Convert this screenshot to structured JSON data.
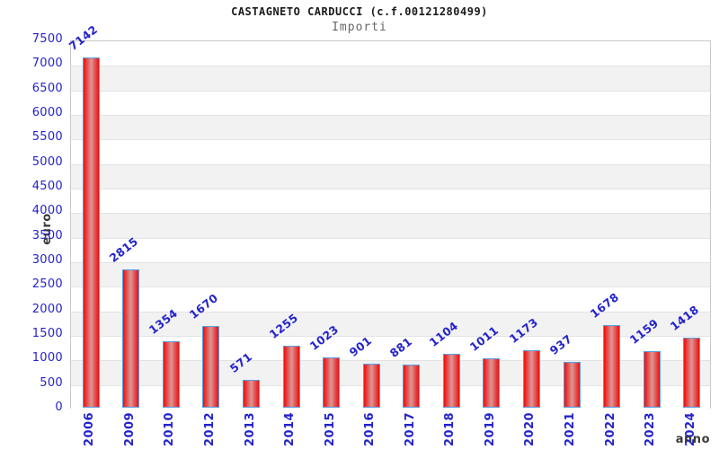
{
  "chart_data": {
    "type": "bar",
    "title": "CASTAGNETO CARDUCCI (c.f.00121280499)",
    "subtitle": "Importi",
    "xlabel": "anno",
    "ylabel": "euro",
    "categories": [
      "2006",
      "2009",
      "2010",
      "2012",
      "2013",
      "2014",
      "2015",
      "2016",
      "2017",
      "2018",
      "2019",
      "2020",
      "2021",
      "2022",
      "2023",
      "2024"
    ],
    "values": [
      7142,
      2815,
      1354,
      1670,
      571,
      1255,
      1023,
      901,
      881,
      1104,
      1011,
      1173,
      937,
      1678,
      1159,
      1418
    ],
    "ylim": [
      0,
      7500
    ],
    "ytick_step": 500,
    "legend": "none",
    "grid": "horizontal-bands-alternating",
    "colors": {
      "label_blue": "#2323cc",
      "bar_edge_red": "#e01414",
      "bar_bright_red": "#ee2222",
      "bar_center_pale": "#d99898",
      "bar_border_blue": "#55a0e6",
      "band_gray": "#f2f2f2",
      "band_white": "#ffffff",
      "grid_line": "#e3e3e3",
      "plot_border": "#c9c9c9",
      "axis_title_dark": "#3a3a3a"
    }
  }
}
